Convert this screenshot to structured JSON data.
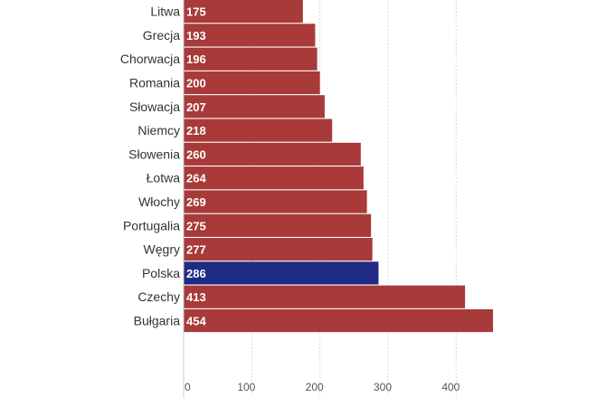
{
  "chart_data": {
    "type": "bar",
    "orientation": "horizontal",
    "title": "",
    "xlabel": "",
    "ylabel": "",
    "categories": [
      "Litwa",
      "Grecja",
      "Chorwacja",
      "Romania",
      "Słowacja",
      "Niemcy",
      "Słowenia",
      "Łotwa",
      "Włochy",
      "Portugalia",
      "Węgry",
      "Polska",
      "Czechy",
      "Bułgaria"
    ],
    "values": [
      175,
      193,
      196,
      200,
      207,
      218,
      260,
      264,
      269,
      275,
      277,
      286,
      413,
      454
    ],
    "value_labels": [
      "175",
      "193",
      "196",
      "200",
      "207",
      "218",
      "260",
      "264",
      "269",
      "275",
      "277",
      "286",
      "413",
      "454"
    ],
    "xlim": [
      0,
      450
    ],
    "x_ticks": [
      0,
      100,
      200,
      300,
      400
    ],
    "x_tick_labels": [
      "0",
      "100",
      "200",
      "300",
      "400"
    ],
    "grid": true,
    "legend": "none",
    "colors": {
      "default": "#a83a3a",
      "highlight": "#1f2a85",
      "highlight_category": "Polska"
    }
  }
}
